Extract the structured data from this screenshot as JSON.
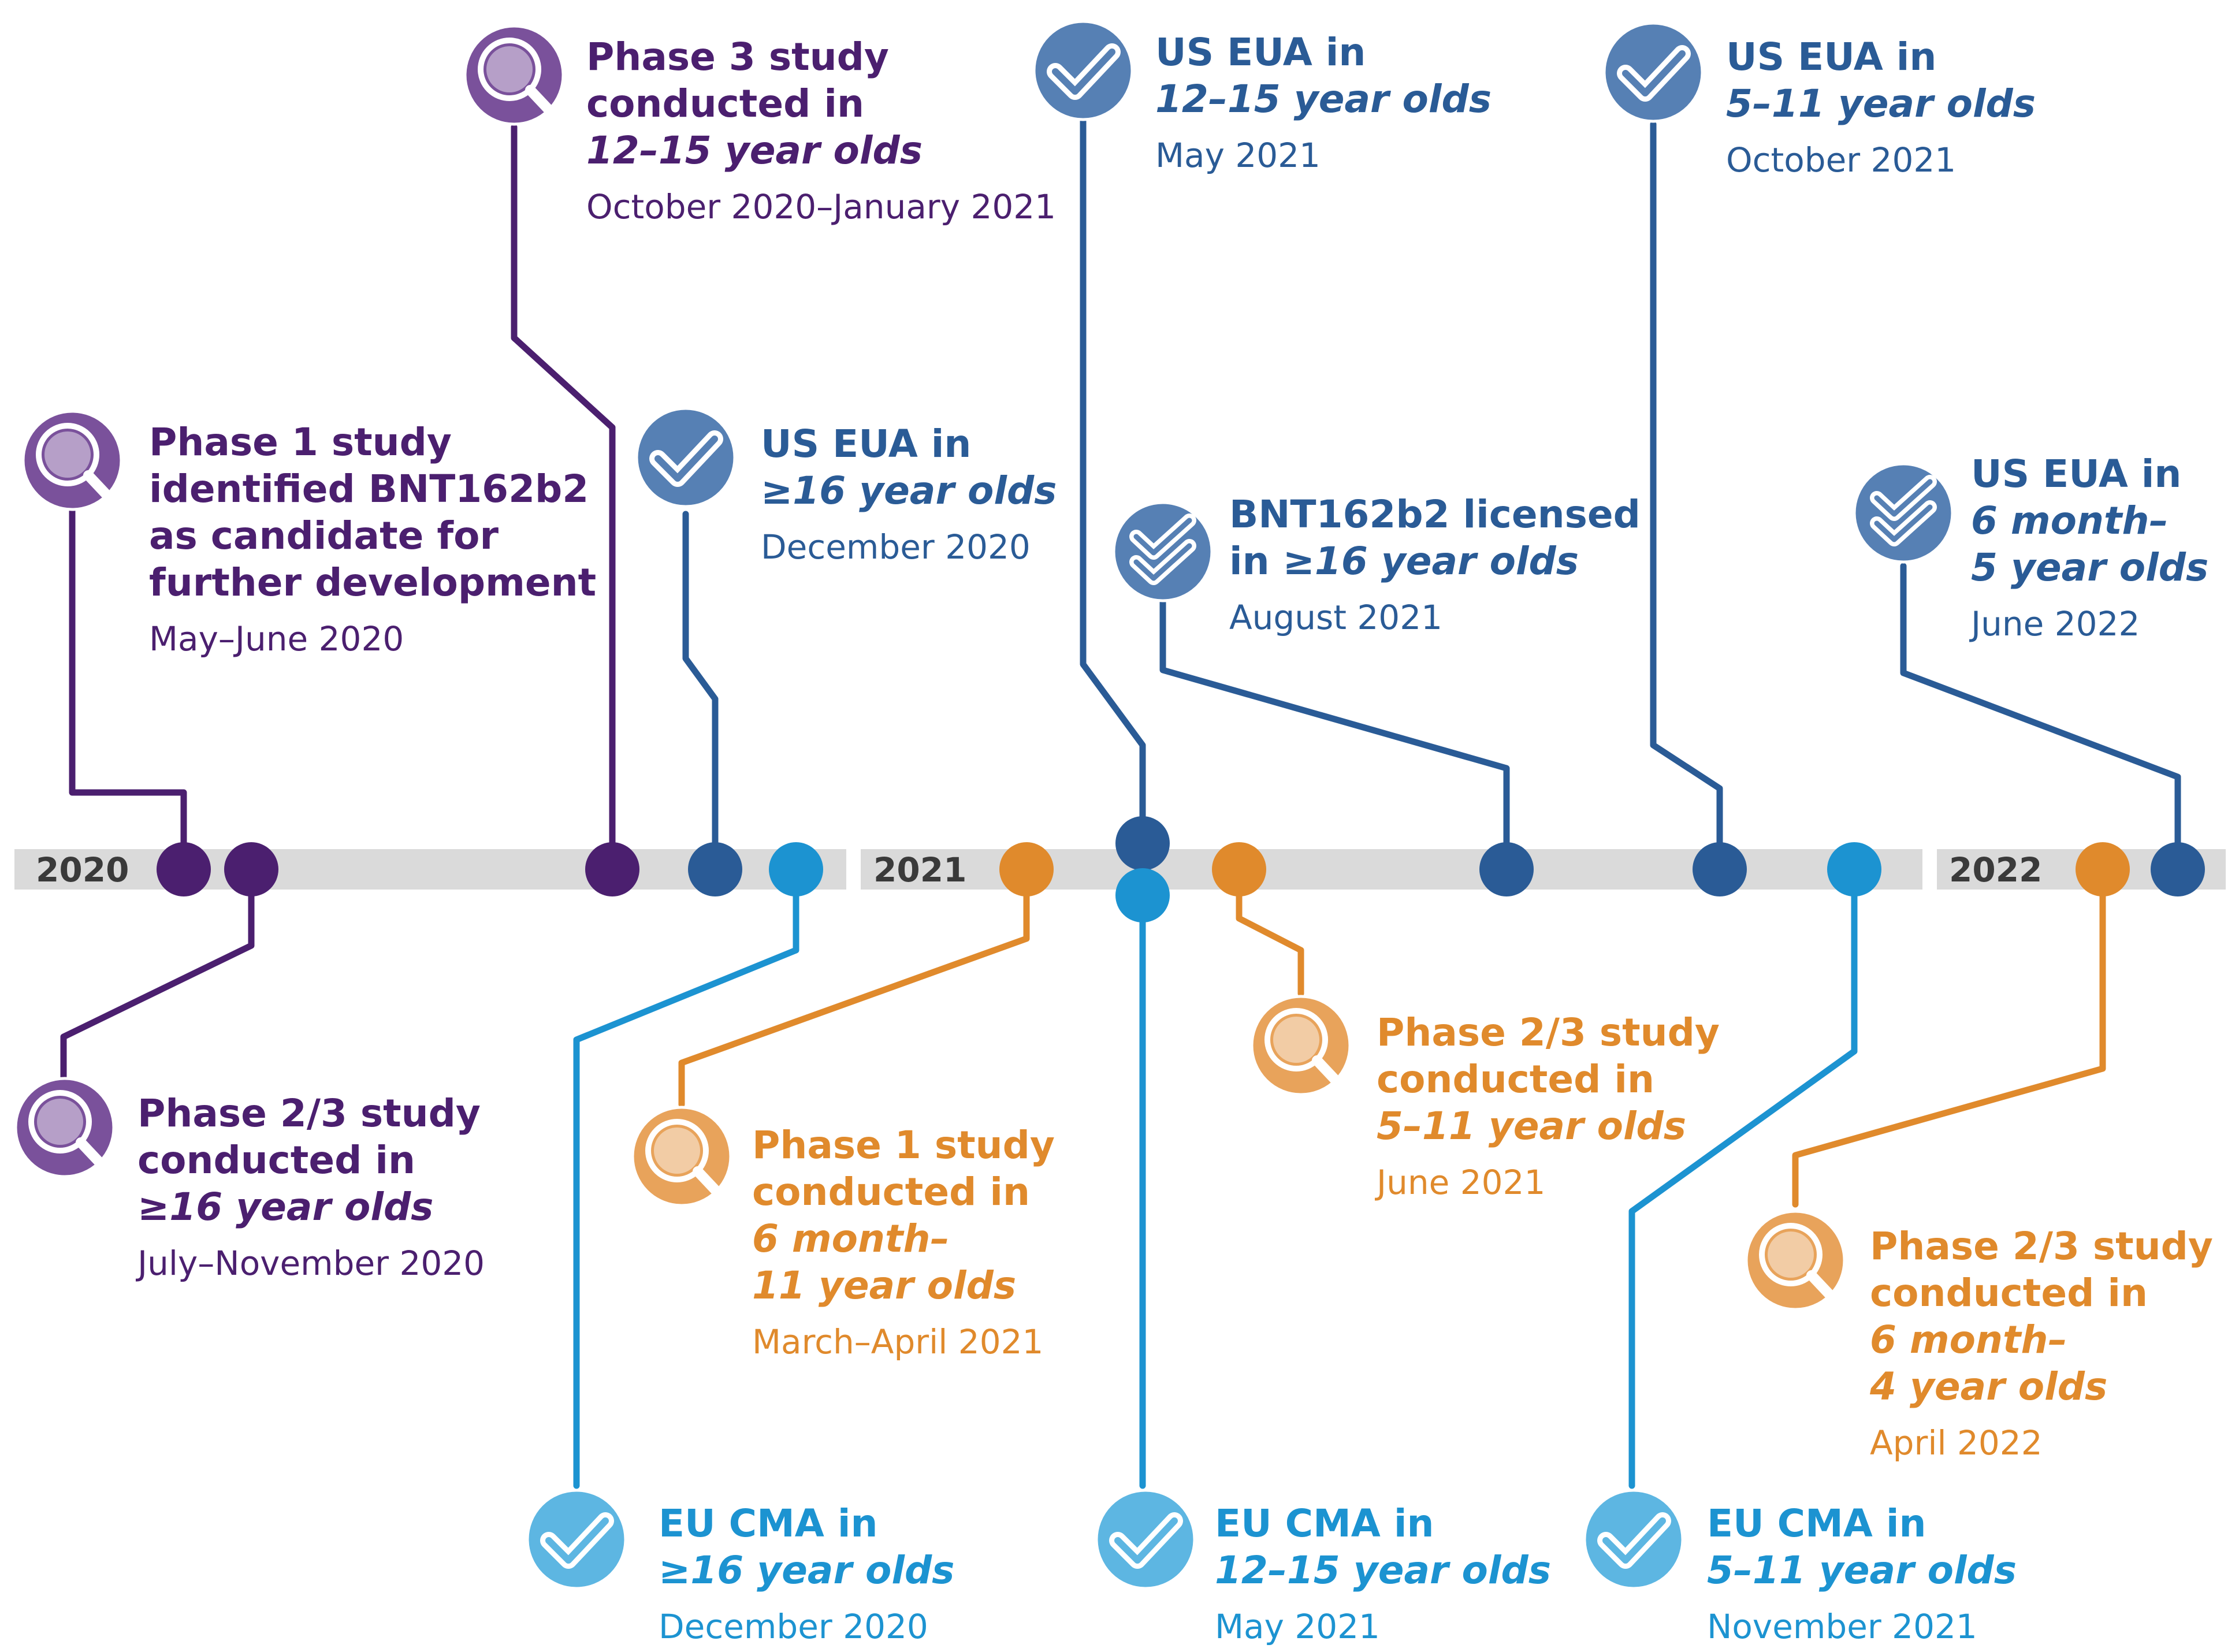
{
  "colors": {
    "purple": "#4B1F6F",
    "purple_icon": "#7A519B",
    "navy": "#2A5B96",
    "navy_icon": "#5680B4",
    "orange": "#E08A2C",
    "orange_icon": "#E8A35B",
    "cyan": "#1C93D1",
    "cyan_icon": "#5DB6E2",
    "bar": "#DADADA"
  },
  "years": [
    "2020",
    "2021",
    "2022"
  ],
  "milestones": [
    {
      "id": "m1",
      "color": "purple",
      "icon": "magnifier-icon",
      "title": [
        "Phase 1 study",
        "identified BNT162b2",
        "as candidate for",
        "further development"
      ],
      "date": "May–June 2020"
    },
    {
      "id": "m2",
      "color": "purple",
      "icon": "magnifier-icon",
      "title": [
        "Phase 2/3 study",
        "conducted in",
        "≥16 year olds"
      ],
      "date": "July–November 2020"
    },
    {
      "id": "m3",
      "color": "purple",
      "icon": "magnifier-icon",
      "title": [
        "Phase 3 study",
        "conducted in",
        "12–15 year olds"
      ],
      "date": "October 2020–January 2021"
    },
    {
      "id": "m4",
      "color": "navy",
      "icon": "checkmark-icon",
      "title": [
        "US EUA in",
        "≥16 year olds"
      ],
      "date": "December 2020"
    },
    {
      "id": "m5",
      "color": "cyan",
      "icon": "checkmark-icon",
      "title": [
        "EU CMA in",
        "≥16 year olds"
      ],
      "date": "December 2020"
    },
    {
      "id": "m6",
      "color": "orange",
      "icon": "magnifier-icon",
      "title": [
        "Phase 1 study",
        "conducted in",
        "6 month–",
        "11 year olds"
      ],
      "date": "March–April 2021"
    },
    {
      "id": "m7",
      "color": "navy",
      "icon": "checkmark-icon",
      "title": [
        "US EUA in",
        "12–15 year olds"
      ],
      "date": "May 2021"
    },
    {
      "id": "m8",
      "color": "cyan",
      "icon": "checkmark-icon",
      "title": [
        "EU CMA in",
        "12–15 year olds"
      ],
      "date": "May 2021"
    },
    {
      "id": "m9",
      "color": "orange",
      "icon": "magnifier-icon",
      "title": [
        "Phase 2/3 study",
        "conducted in",
        "5–11 year olds"
      ],
      "date": "June 2021"
    },
    {
      "id": "m10",
      "color": "navy",
      "icon": "double-checkmark-icon",
      "title": [
        "BNT162b2 licensed",
        "in ≥16 year olds"
      ],
      "date": "August 2021"
    },
    {
      "id": "m11",
      "color": "navy",
      "icon": "checkmark-icon",
      "title": [
        "US EUA in",
        "5–11 year olds"
      ],
      "date": "October 2021"
    },
    {
      "id": "m12",
      "color": "cyan",
      "icon": "checkmark-icon",
      "title": [
        "EU CMA in",
        "5–11 year olds"
      ],
      "date": "November 2021"
    },
    {
      "id": "m13",
      "color": "orange",
      "icon": "magnifier-icon",
      "title": [
        "Phase 2/3 study",
        "conducted in",
        "6 month–",
        "4 year olds"
      ],
      "date": "April 2022"
    },
    {
      "id": "m14",
      "color": "navy",
      "icon": "double-checkmark-icon",
      "title": [
        "US EUA in",
        "6 month–",
        "5 year olds"
      ],
      "date": "June 2022"
    }
  ]
}
